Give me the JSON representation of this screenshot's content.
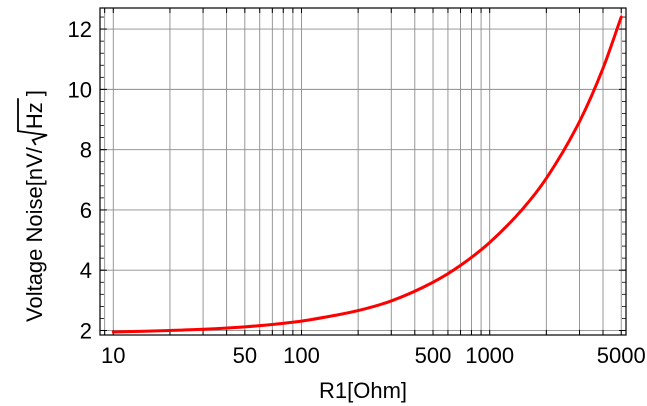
{
  "chart_data": {
    "type": "line",
    "xlabel": "R1[Ohm]",
    "ylabel": "Voltage Noise[nV/√Hz ]",
    "ylabel_parts": {
      "prefix": "Voltage Noise[nV/",
      "radicand": "Hz",
      "suffix": " ]"
    },
    "x_scale": "log",
    "xlim": [
      8.5,
      5300
    ],
    "ylim": [
      1.85,
      12.7
    ],
    "x_ticks": [
      10,
      50,
      100,
      500,
      1000,
      5000
    ],
    "x_tick_labels": [
      "10",
      "50",
      "100",
      "500",
      "1000",
      "5000"
    ],
    "y_ticks": [
      2,
      4,
      6,
      8,
      10,
      12
    ],
    "y_tick_labels": [
      "2",
      "4",
      "6",
      "8",
      "10",
      "12"
    ],
    "grid": true,
    "series": [
      {
        "color": "#ff0000",
        "x": [
          10,
          20,
          30,
          50,
          70,
          100,
          150,
          200,
          300,
          500,
          700,
          1000,
          1500,
          2000,
          3000,
          4000,
          5000
        ],
        "y": [
          1.95,
          2.0,
          2.04,
          2.12,
          2.2,
          2.31,
          2.5,
          2.66,
          2.98,
          3.6,
          4.16,
          4.92,
          6.04,
          7.05,
          8.93,
          10.7,
          12.4
        ]
      }
    ]
  }
}
